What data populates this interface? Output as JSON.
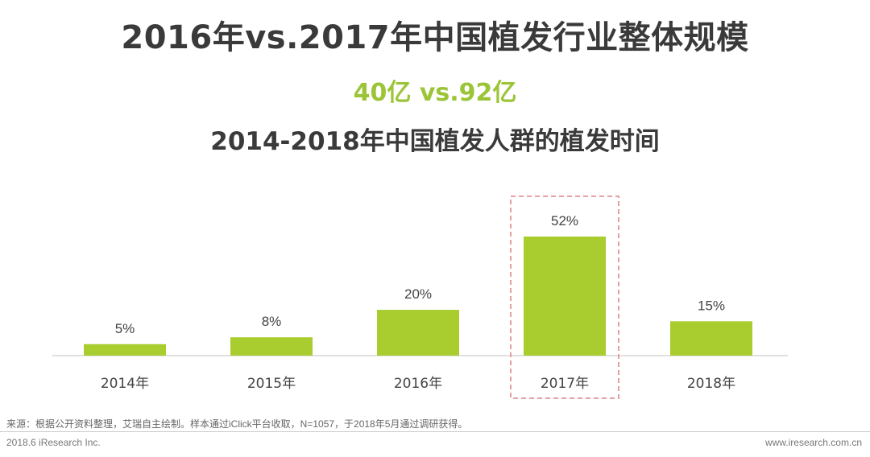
{
  "header": {
    "title": "2016年vs.2017年中国植发行业整体规模",
    "subtitle": "40亿 vs.92亿"
  },
  "chart_data": {
    "type": "bar",
    "title": "2014-2018年中国植发人群的植发时间",
    "categories": [
      "2014年",
      "2015年",
      "2016年",
      "2017年",
      "2018年"
    ],
    "values": [
      5,
      8,
      20,
      52,
      15
    ],
    "data_labels": [
      "5%",
      "8%",
      "20%",
      "52%",
      "15%"
    ],
    "highlighted_category": "2017年",
    "xlabel": "",
    "ylabel": "",
    "ylim": [
      0,
      52
    ],
    "grid": false,
    "legend": "none"
  },
  "colors": {
    "bar": "#a9cc2e",
    "accent": "#9bc537",
    "highlight_border": "#e6a0a0",
    "title_text": "#3a3a3a"
  },
  "footer": {
    "source": "来源：根据公开资料整理，艾瑞自主绘制。样本通过iClick平台收取，N=1057，于2018年5月通过调研获得。",
    "copyright": "2018.6 iResearch Inc.",
    "website": "www.iresearch.com.cn"
  }
}
